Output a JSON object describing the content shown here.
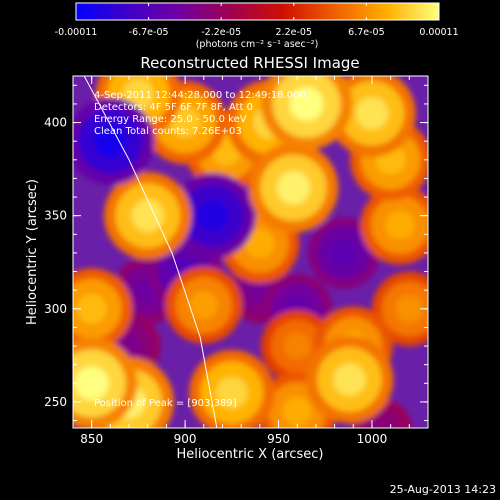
{
  "chart_data": {
    "type": "heatmap",
    "title": "Reconstructed RHESSI Image",
    "xlabel": "Heliocentric X (arcsec)",
    "ylabel": "Heliocentric Y (arcsec)",
    "xlim": [
      840,
      1030
    ],
    "ylim": [
      236,
      425
    ],
    "xticks": [
      "850",
      "900",
      "950",
      "1000"
    ],
    "yticks": [
      "250",
      "300",
      "350",
      "400"
    ],
    "annotations": [
      "4-Sep-2011 12:44:28.000 to 12:49:18.000",
      "Detectors: 4F 5F 6F 7F 8F, Att 0",
      "Energy Range: 25.0 - 50.0 keV",
      "Clean     Total counts: 7.26E+03"
    ],
    "peak_label": "Position of Peak = [903,389]",
    "peak": [
      903,
      389
    ],
    "limb_curve": [
      [
        846,
        425
      ],
      [
        870,
        380
      ],
      [
        893,
        330
      ],
      [
        908,
        285
      ],
      [
        917,
        236
      ]
    ],
    "colorbar": {
      "ticks": [
        "-0.00011",
        "-6.7e-05",
        "-2.2e-05",
        "2.2e-05",
        "6.7e-05",
        "0.00011"
      ],
      "unit_label": "(photons cm⁻² s⁻¹ asec⁻²)",
      "min": -0.00011,
      "max": 0.00011,
      "colors": [
        "#0000ff",
        "#4000c8",
        "#7000a0",
        "#a00050",
        "#d01000",
        "#f06000",
        "#ffb000",
        "#ffff80"
      ]
    },
    "intensity_features": [
      {
        "x": 850,
        "y": 260,
        "value": 1.0
      },
      {
        "x": 870,
        "y": 250,
        "value": 0.95
      },
      {
        "x": 850,
        "y": 300,
        "value": 0.75
      },
      {
        "x": 875,
        "y": 415,
        "value": 0.85
      },
      {
        "x": 900,
        "y": 400,
        "value": 0.8
      },
      {
        "x": 880,
        "y": 350,
        "value": 0.9
      },
      {
        "x": 922,
        "y": 385,
        "value": 0.75
      },
      {
        "x": 945,
        "y": 400,
        "value": 0.85
      },
      {
        "x": 965,
        "y": 410,
        "value": 1.0
      },
      {
        "x": 958,
        "y": 365,
        "value": 0.95
      },
      {
        "x": 940,
        "y": 335,
        "value": 0.7
      },
      {
        "x": 1000,
        "y": 405,
        "value": 0.9
      },
      {
        "x": 1010,
        "y": 380,
        "value": 0.75
      },
      {
        "x": 1015,
        "y": 345,
        "value": 0.7
      },
      {
        "x": 990,
        "y": 280,
        "value": 0.7
      },
      {
        "x": 988,
        "y": 262,
        "value": 0.9
      },
      {
        "x": 960,
        "y": 280,
        "value": 0.55
      },
      {
        "x": 910,
        "y": 302,
        "value": 0.65
      },
      {
        "x": 925,
        "y": 255,
        "value": 0.85
      },
      {
        "x": 960,
        "y": 245,
        "value": 0.7
      },
      {
        "x": 1020,
        "y": 300,
        "value": 0.6
      },
      {
        "x": 860,
        "y": 390,
        "value": -0.9
      },
      {
        "x": 915,
        "y": 350,
        "value": -0.85
      },
      {
        "x": 900,
        "y": 320,
        "value": -0.6
      },
      {
        "x": 880,
        "y": 310,
        "value": -0.45
      },
      {
        "x": 940,
        "y": 310,
        "value": -0.4
      },
      {
        "x": 985,
        "y": 330,
        "value": -0.55
      },
      {
        "x": 870,
        "y": 280,
        "value": -0.35
      },
      {
        "x": 1005,
        "y": 235,
        "value": -0.3
      },
      {
        "x": 960,
        "y": 300,
        "value": -0.5
      }
    ]
  },
  "timestamp": "25-Aug-2013 14:23"
}
